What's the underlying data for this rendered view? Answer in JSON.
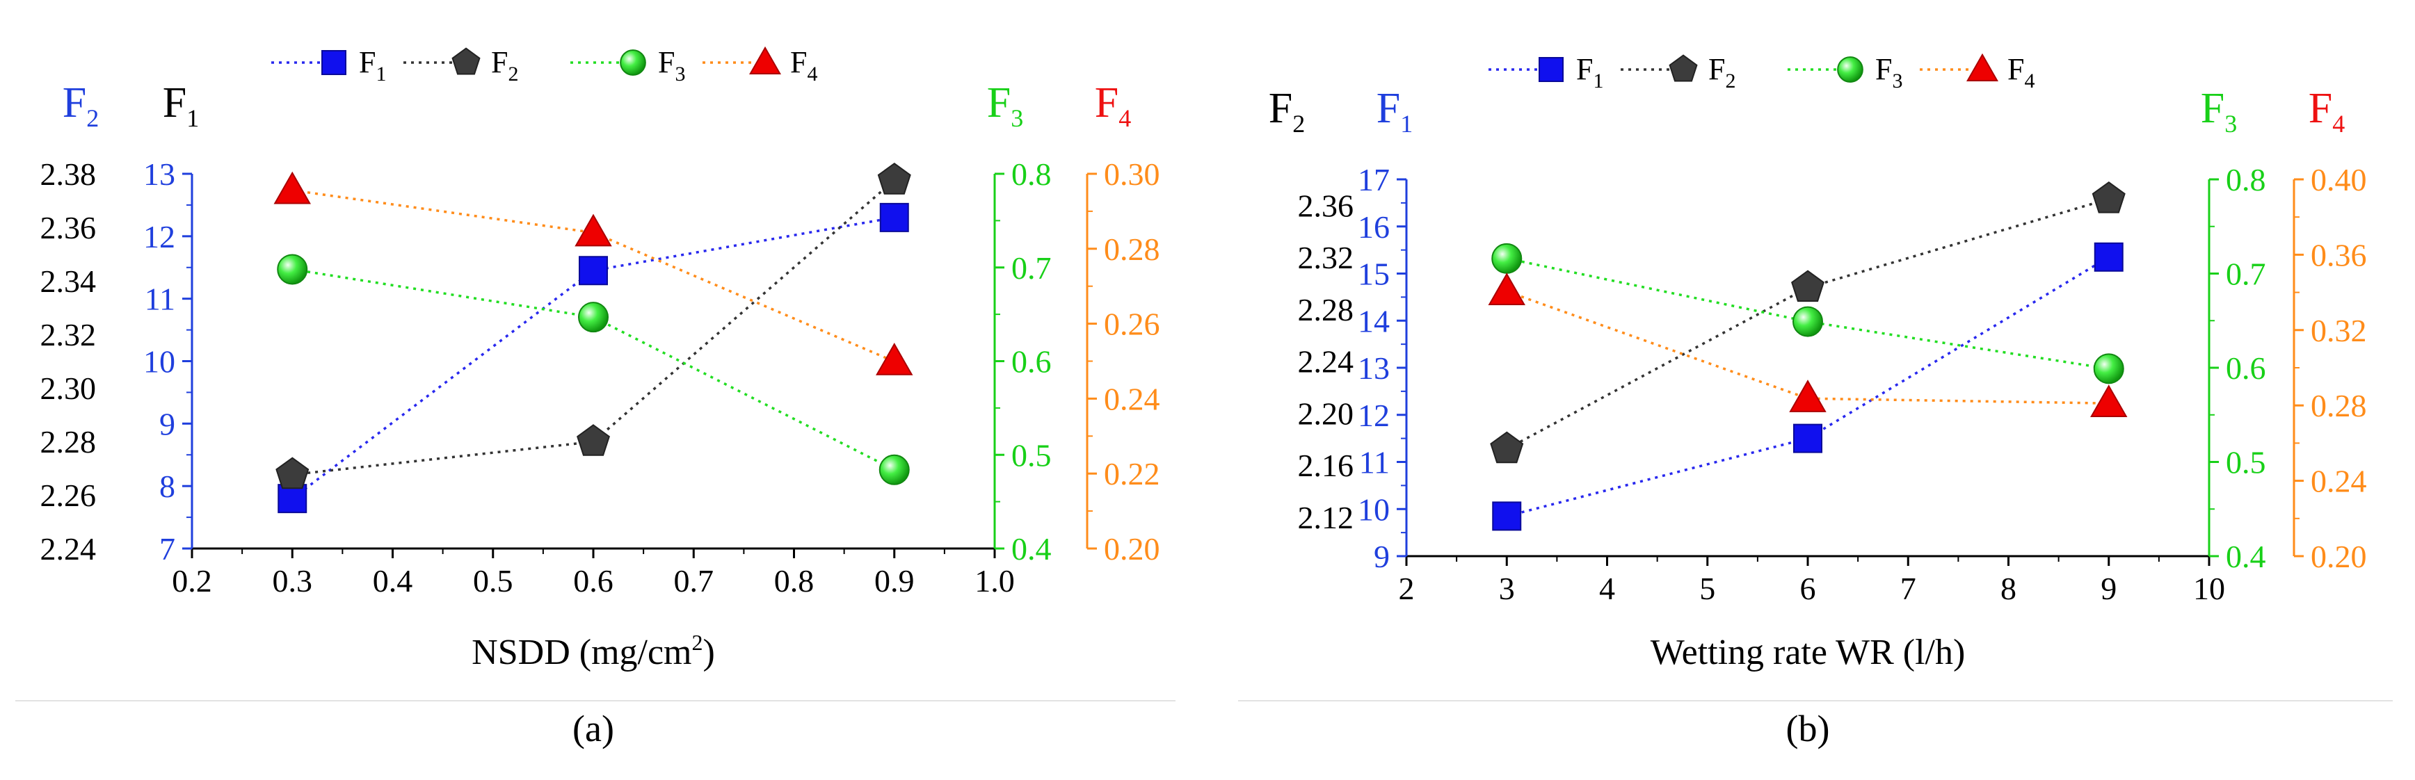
{
  "chart_data": [
    {
      "type": "scatter",
      "panel_label": "(a)",
      "xlabel": "NSDD (mg/cm",
      "xlabel_sup": "2",
      "xlabel_tail": ")",
      "xlim": [
        0.2,
        1.0
      ],
      "xticks": [
        "0.2",
        "0.3",
        "0.4",
        "0.5",
        "0.6",
        "0.7",
        "0.8",
        "0.9",
        "1.0"
      ],
      "x": [
        0.3,
        0.6,
        0.9
      ],
      "legend_placement": "top-center",
      "axes": [
        {
          "id": "F2",
          "label": "F",
          "label_sub": "2",
          "label_color": "#1f3fdd",
          "side": "outer-left",
          "axis_color": "#000000",
          "lim": [
            2.24,
            2.38
          ],
          "ticks": [
            "2.24",
            "2.26",
            "2.28",
            "2.30",
            "2.32",
            "2.34",
            "2.36",
            "2.38"
          ]
        },
        {
          "id": "F1",
          "label": "F",
          "label_sub": "1",
          "label_color": "#000000",
          "side": "inner-left",
          "axis_color": "#1f3fdd",
          "lim": [
            7,
            13
          ],
          "ticks": [
            "7",
            "8",
            "9",
            "10",
            "11",
            "12",
            "13"
          ]
        },
        {
          "id": "F3",
          "label": "F",
          "label_sub": "3",
          "label_color": "#18d018",
          "side": "inner-right",
          "axis_color": "#18d018",
          "lim": [
            0.4,
            0.8
          ],
          "ticks": [
            "0.4",
            "0.5",
            "0.6",
            "0.7",
            "0.8"
          ]
        },
        {
          "id": "F4",
          "label": "F",
          "label_sub": "4",
          "label_color": "#ee1111",
          "side": "outer-right",
          "axis_color": "#ff8c1a",
          "lim": [
            0.2,
            0.3
          ],
          "ticks": [
            "0.20",
            "0.22",
            "0.24",
            "0.26",
            "0.28",
            "0.30"
          ]
        }
      ],
      "series": [
        {
          "name": "F",
          "name_sub": "1",
          "axis": "F1",
          "marker": "square",
          "color": "#1010ee",
          "line_color": "#2828ee",
          "values": [
            7.8,
            11.45,
            12.3
          ]
        },
        {
          "name": "F",
          "name_sub": "2",
          "axis": "F2",
          "marker": "pentagon",
          "color": "#3c3c3c",
          "line_color": "#333333",
          "values": [
            2.2676,
            2.2799,
            2.3776
          ]
        },
        {
          "name": "F",
          "name_sub": "3",
          "axis": "F3",
          "marker": "sphere",
          "color": "#22cc22",
          "line_color": "#22dd22",
          "values": [
            0.698,
            0.647,
            0.484
          ]
        },
        {
          "name": "F",
          "name_sub": "4",
          "axis": "F4",
          "marker": "triangle",
          "color": "#ee0000",
          "line_color": "#ff8c1a",
          "values": [
            0.2956,
            0.2843,
            0.2499
          ]
        }
      ]
    },
    {
      "type": "scatter",
      "panel_label": "(b)",
      "xlabel": "Wetting rate WR (l/h)",
      "xlabel_sup": "",
      "xlabel_tail": "",
      "xlim": [
        2,
        10
      ],
      "xticks": [
        "2",
        "3",
        "4",
        "5",
        "6",
        "7",
        "8",
        "9",
        "10"
      ],
      "x": [
        3,
        6,
        9
      ],
      "legend_placement": "top-center",
      "axes": [
        {
          "id": "F2",
          "label": "F",
          "label_sub": "2",
          "label_color": "#000000",
          "side": "outer-left",
          "axis_color": "#000000",
          "lim": [
            2.09,
            2.38
          ],
          "ticks": [
            "2.12",
            "2.16",
            "2.20",
            "2.24",
            "2.28",
            "2.32",
            "2.36"
          ]
        },
        {
          "id": "F1",
          "label": "F",
          "label_sub": "1",
          "label_color": "#1f3fdd",
          "side": "inner-left",
          "axis_color": "#1f3fdd",
          "lim": [
            9,
            17
          ],
          "ticks": [
            "9",
            "10",
            "11",
            "12",
            "13",
            "14",
            "15",
            "16",
            "17"
          ]
        },
        {
          "id": "F3",
          "label": "F",
          "label_sub": "3",
          "label_color": "#18d018",
          "side": "inner-right",
          "axis_color": "#18d018",
          "lim": [
            0.4,
            0.8
          ],
          "ticks": [
            "0.4",
            "0.5",
            "0.6",
            "0.7",
            "0.8"
          ]
        },
        {
          "id": "F4",
          "label": "F",
          "label_sub": "4",
          "label_color": "#ee1111",
          "side": "outer-right",
          "axis_color": "#ff8c1a",
          "lim": [
            0.2,
            0.4
          ],
          "ticks": [
            "0.20",
            "0.24",
            "0.28",
            "0.32",
            "0.36",
            "0.40"
          ]
        }
      ],
      "series": [
        {
          "name": "F",
          "name_sub": "1",
          "axis": "F1",
          "marker": "square",
          "color": "#1010ee",
          "line_color": "#2828ee",
          "values": [
            9.85,
            11.5,
            15.35
          ]
        },
        {
          "name": "F",
          "name_sub": "2",
          "axis": "F2",
          "marker": "pentagon",
          "color": "#3c3c3c",
          "line_color": "#333333",
          "values": [
            2.1725,
            2.2967,
            2.3649
          ]
        },
        {
          "name": "F",
          "name_sub": "3",
          "axis": "F3",
          "marker": "sphere",
          "color": "#22cc22",
          "line_color": "#22dd22",
          "values": [
            0.716,
            0.649,
            0.599
          ]
        },
        {
          "name": "F",
          "name_sub": "4",
          "axis": "F4",
          "marker": "triangle",
          "color": "#ee0000",
          "line_color": "#ff8c1a",
          "values": [
            0.3405,
            0.2837,
            0.2811
          ]
        }
      ]
    }
  ]
}
